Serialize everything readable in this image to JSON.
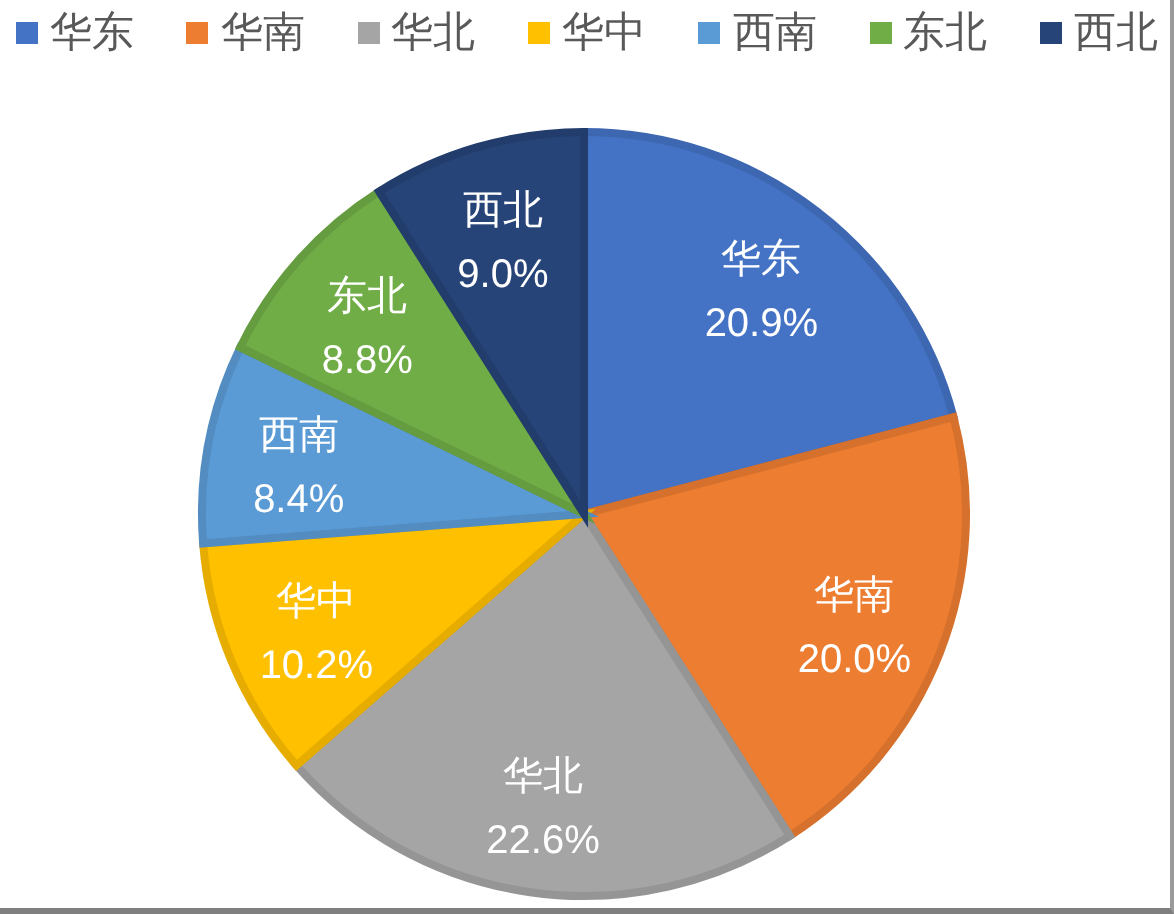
{
  "chart_data": {
    "type": "pie",
    "categories": [
      "华东",
      "华南",
      "华北",
      "华中",
      "西南",
      "东北",
      "西北"
    ],
    "values": [
      20.9,
      20.0,
      22.6,
      10.2,
      8.4,
      8.8,
      9.0
    ],
    "colors": [
      "#4472c4",
      "#ed7d31",
      "#a5a5a5",
      "#ffc000",
      "#5b9bd5",
      "#70ad47",
      "#264478"
    ],
    "value_labels": [
      "20.9%",
      "20.0%",
      "22.6%",
      "10.2%",
      "8.4%",
      "8.8%",
      "9.0%"
    ],
    "legend": "top"
  }
}
